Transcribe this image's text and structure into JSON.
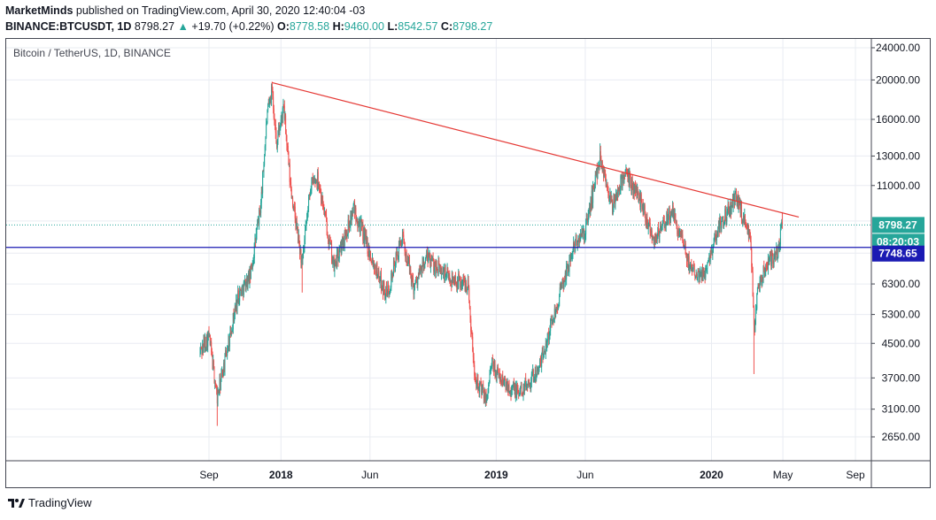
{
  "header": {
    "author": "MarketMinds",
    "published": "published on TradingView.com, April 30, 2020 12:40:04 -03",
    "symbol": "BINANCE:BTCUSDT, 1D",
    "last": "8798.27",
    "change": "+19.70 (+0.22%)",
    "o_label": "O:",
    "o": "8778.58",
    "h_label": "H:",
    "h": "9460.00",
    "l_label": "L:",
    "l": "8542.57",
    "c_label": "C:",
    "c": "8798.27"
  },
  "chart_title": "Bitcoin / TetherUS, 1D, BINANCE",
  "footer": {
    "brand": "TradingView"
  },
  "colors": {
    "up": "#26a69a",
    "down": "#ef5350",
    "trendline": "#e53935",
    "hline": "#1a1ab3",
    "grid": "#e9ecf2"
  },
  "chart_data": {
    "type": "candlestick",
    "title": "Bitcoin / TetherUS, 1D, BINANCE",
    "y_scale": "log",
    "y_ticks": [
      2650,
      3100,
      3700,
      4500,
      5300,
      6300,
      7500,
      9000,
      11000,
      13000,
      16000,
      20000,
      24000
    ],
    "y_tick_labels_shown": [
      "2650.00",
      "3100.00",
      "3700.00",
      "4500.00",
      "5300.00",
      "6300.00",
      "11000.00",
      "13000.00",
      "16000.00",
      "20000.00",
      "24000.00"
    ],
    "x_ticks": [
      {
        "label": "Sep",
        "date": "2017-09-01",
        "bold": false
      },
      {
        "label": "2018",
        "date": "2018-01-01",
        "bold": true
      },
      {
        "label": "Jun",
        "date": "2018-06-01",
        "bold": false
      },
      {
        "label": "2019",
        "date": "2019-01-01",
        "bold": true
      },
      {
        "label": "Jun",
        "date": "2019-06-01",
        "bold": false
      },
      {
        "label": "2020",
        "date": "2020-01-01",
        "bold": true
      },
      {
        "label": "May",
        "date": "2020-05-01",
        "bold": false
      },
      {
        "label": "Sep",
        "date": "2020-09-01",
        "bold": false
      }
    ],
    "x_range": [
      "2017-07-01",
      "2020-10-15"
    ],
    "y_range": [
      2400,
      25500
    ],
    "price_path": [
      [
        "2017-08-17",
        4300
      ],
      [
        "2017-09-01",
        4700
      ],
      [
        "2017-09-15",
        3300
      ],
      [
        "2017-10-01",
        4300
      ],
      [
        "2017-10-20",
        5900
      ],
      [
        "2017-11-10",
        6600
      ],
      [
        "2017-11-28",
        9900
      ],
      [
        "2017-12-08",
        16000
      ],
      [
        "2017-12-17",
        19300
      ],
      [
        "2017-12-24",
        14000
      ],
      [
        "2018-01-06",
        17000
      ],
      [
        "2018-01-17",
        11000
      ],
      [
        "2018-02-06",
        7000
      ],
      [
        "2018-02-20",
        11000
      ],
      [
        "2018-03-05",
        11500
      ],
      [
        "2018-04-01",
        6900
      ],
      [
        "2018-05-05",
        9700
      ],
      [
        "2018-06-01",
        7500
      ],
      [
        "2018-06-29",
        5900
      ],
      [
        "2018-07-25",
        8200
      ],
      [
        "2018-08-14",
        6200
      ],
      [
        "2018-09-05",
        7300
      ],
      [
        "2018-10-15",
        6500
      ],
      [
        "2018-11-14",
        6300
      ],
      [
        "2018-11-25",
        3800
      ],
      [
        "2018-12-15",
        3250
      ],
      [
        "2018-12-24",
        4000
      ],
      [
        "2019-01-10",
        3650
      ],
      [
        "2019-02-08",
        3400
      ],
      [
        "2019-03-15",
        3900
      ],
      [
        "2019-04-02",
        4900
      ],
      [
        "2019-05-14",
        7900
      ],
      [
        "2019-06-01",
        8500
      ],
      [
        "2019-06-26",
        13000
      ],
      [
        "2019-07-17",
        9700
      ],
      [
        "2019-08-06",
        11800
      ],
      [
        "2019-09-01",
        10300
      ],
      [
        "2019-09-26",
        8100
      ],
      [
        "2019-10-26",
        9500
      ],
      [
        "2019-11-25",
        7000
      ],
      [
        "2019-12-18",
        6600
      ],
      [
        "2020-01-14",
        8800
      ],
      [
        "2020-02-13",
        10300
      ],
      [
        "2020-03-08",
        8000
      ],
      [
        "2020-03-13",
        4800
      ],
      [
        "2020-03-20",
        6200
      ],
      [
        "2020-04-06",
        7200
      ],
      [
        "2020-04-22",
        7500
      ],
      [
        "2020-04-30",
        8798.27
      ]
    ],
    "low_wicks": [
      [
        "2017-09-15",
        2820
      ],
      [
        "2018-02-06",
        6000
      ],
      [
        "2018-12-15",
        3156
      ],
      [
        "2020-03-13",
        3782
      ]
    ],
    "high_wicks": [
      [
        "2017-12-17",
        19800
      ],
      [
        "2019-06-26",
        13970
      ],
      [
        "2020-04-30",
        9460
      ]
    ],
    "trendline": {
      "from": [
        "2017-12-17",
        19700
      ],
      "to": [
        "2020-05-28",
        9200
      ]
    },
    "horizontal_line": {
      "value": 7748.65,
      "label": "7748.65"
    },
    "last_price": {
      "value": 8798.27,
      "label": "8798.27",
      "countdown": "08:20:03"
    }
  }
}
